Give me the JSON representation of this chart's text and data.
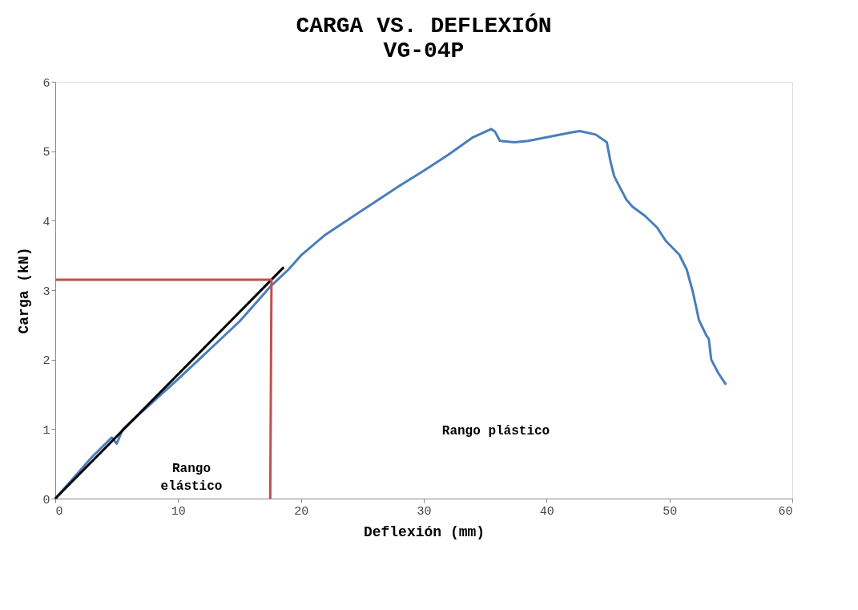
{
  "chart_data": {
    "type": "line",
    "title": "CARGA VS. DEFLEXIÓN",
    "subtitle": "VG-04P",
    "xlabel": "Deflexión (mm)",
    "ylabel": "Carga (kN)",
    "xlim": [
      0,
      60
    ],
    "xticks": [
      0,
      10,
      20,
      30,
      40,
      50,
      60
    ],
    "ylim": [
      0,
      6
    ],
    "yticks": [
      0,
      1,
      2,
      3,
      4,
      5,
      6
    ],
    "grid": false,
    "line_style": "solid",
    "marker": "none",
    "series": [
      {
        "color": "#4a7ebb",
        "x": [
          0,
          3,
          4.6,
          5.0,
          5.5,
          10,
          15,
          17.5,
          19,
          20,
          22,
          25,
          28,
          30,
          32,
          34,
          35.5,
          35.8,
          36.2,
          37.4,
          38.5,
          40,
          42,
          42.7,
          44,
          44.9,
          45.2,
          45.5,
          46.5,
          47,
          48,
          49,
          49.7,
          50.8,
          51.4,
          51.9,
          52.4,
          53.0,
          53.2,
          53.4,
          53.7,
          54.0,
          54.6
        ],
        "values": [
          0,
          0.6,
          0.88,
          0.79,
          1.0,
          1.72,
          2.55,
          3.05,
          3.3,
          3.5,
          3.8,
          4.15,
          4.5,
          4.72,
          4.95,
          5.2,
          5.32,
          5.28,
          5.15,
          5.13,
          5.15,
          5.2,
          5.27,
          5.29,
          5.24,
          5.13,
          4.85,
          4.64,
          4.3,
          4.2,
          4.07,
          3.9,
          3.71,
          3.51,
          3.3,
          2.98,
          2.57,
          2.35,
          2.3,
          2.0,
          1.9,
          1.8,
          1.64
        ]
      },
      {
        "color": "#000000",
        "x": [
          0,
          18.6
        ],
        "values": [
          0,
          3.33
        ]
      },
      {
        "color": "#c0504d",
        "x": [
          0,
          17.6,
          17.5
        ],
        "values": [
          3.15,
          3.15,
          0
        ]
      }
    ],
    "annotations": [
      "Rango elástico",
      "Rango plástico"
    ]
  }
}
